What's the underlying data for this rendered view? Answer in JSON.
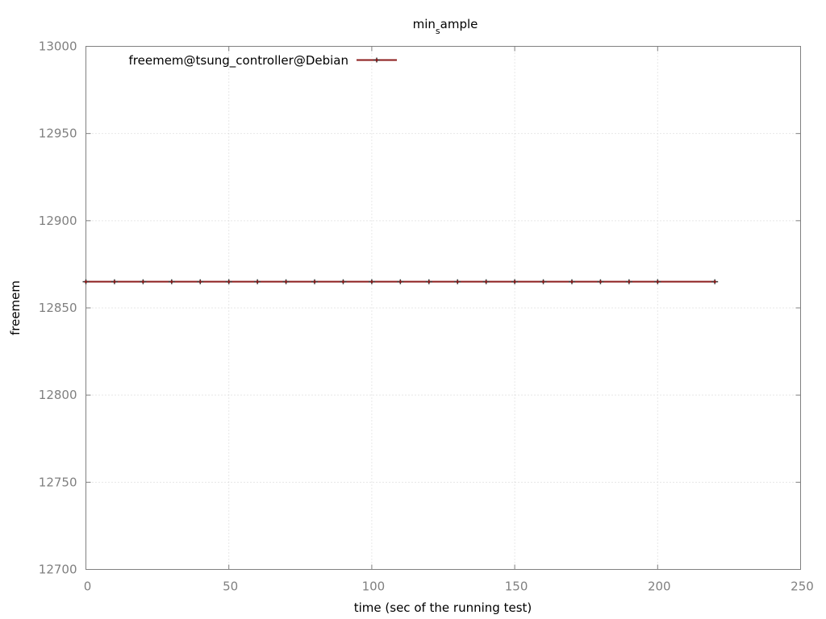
{
  "chart_data": {
    "type": "line",
    "title_main": "min",
    "title_sub": "s",
    "title_rest": "ample",
    "xlabel": "time (sec of the running test)",
    "ylabel": "freemem",
    "xlim": [
      0,
      250
    ],
    "ylim": [
      12700,
      13000
    ],
    "xticks": [
      0,
      50,
      100,
      150,
      200,
      250
    ],
    "yticks": [
      12700,
      12750,
      12800,
      12850,
      12900,
      12950,
      13000
    ],
    "grid": true,
    "legend_position": "top-left",
    "series": [
      {
        "name": "freemem@tsung_controller@Debian",
        "color": "#8b1a1a",
        "x": [
          0,
          10,
          20,
          30,
          40,
          50,
          60,
          70,
          80,
          90,
          100,
          110,
          120,
          130,
          140,
          150,
          160,
          170,
          180,
          190,
          200,
          220
        ],
        "y": [
          12865,
          12865,
          12865,
          12865,
          12865,
          12865,
          12865,
          12865,
          12865,
          12865,
          12865,
          12865,
          12865,
          12865,
          12865,
          12865,
          12865,
          12865,
          12865,
          12865,
          12865,
          12865
        ]
      }
    ]
  }
}
